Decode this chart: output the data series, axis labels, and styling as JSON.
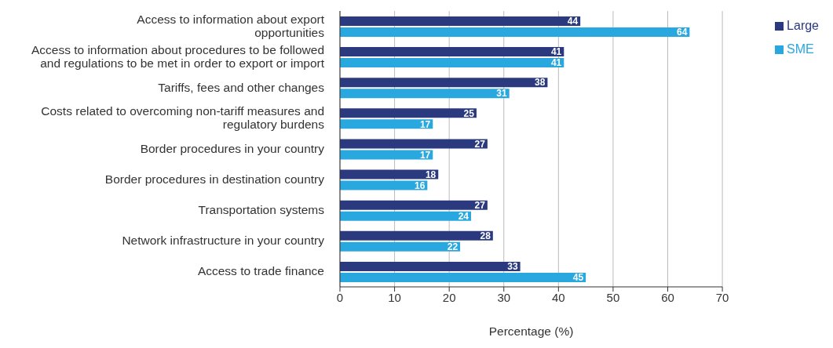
{
  "chart_data": {
    "type": "bar",
    "orientation": "horizontal",
    "xlabel": "Percentage (%)",
    "categories": [
      "Access to information about export opportunities",
      "Access to information about procedures to be followed and regulations to be met in order to export or import",
      "Tariffs, fees and other changes",
      "Costs related to overcoming non-tariff measures and regulatory burdens",
      "Border procedures in your country",
      "Border procedures in destination country",
      "Transportation systems",
      "Network infrastructure in your country",
      "Access to trade finance"
    ],
    "series": [
      {
        "name": "Large",
        "color": "#2b3a7e",
        "values": [
          44,
          41,
          38,
          25,
          27,
          18,
          27,
          28,
          33
        ]
      },
      {
        "name": "SME",
        "color": "#29a8e0",
        "values": [
          64,
          41,
          31,
          17,
          17,
          16,
          24,
          22,
          45
        ]
      }
    ],
    "xlim": [
      0,
      70
    ],
    "xticks": [
      0,
      10,
      20,
      30,
      40,
      50,
      60,
      70
    ],
    "grid": "x",
    "legend": "top right",
    "data_labels": true
  }
}
